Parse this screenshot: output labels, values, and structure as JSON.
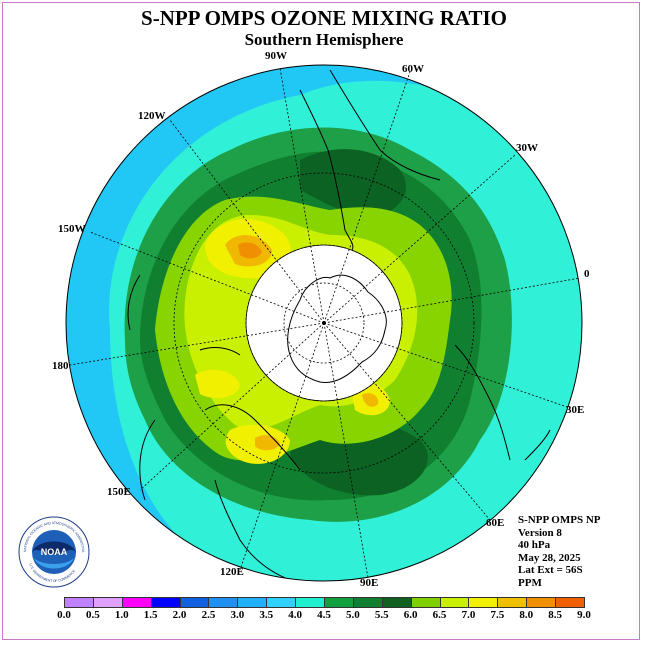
{
  "header": {
    "title": "S-NPP OMPS OZONE MIXING RATIO",
    "subtitle": "Southern Hemisphere"
  },
  "longitude_labels": {
    "w90": "90W",
    "w60": "60W",
    "w120": "120W",
    "w30": "30W",
    "w150": "150W",
    "e0": "0",
    "e180": "180",
    "e30": "30E",
    "e150": "150E",
    "e60": "60E",
    "e120": "120E",
    "e90": "90E"
  },
  "info": {
    "instrument": "S-NPP OMPS NP",
    "version": "Version 8",
    "level": "40 hPa",
    "date": "May 28, 2025",
    "lat_ext": "Lat Ext = 56S",
    "units": "PPM"
  },
  "logo": {
    "text": "NOAA",
    "ring_text": "NATIONAL OCEANIC AND ATMOSPHERIC ADMINISTRATION",
    "ring_text_bottom": "U.S. DEPARTMENT OF COMMERCE"
  },
  "colorbar": {
    "ticks": [
      "0.0",
      "0.5",
      "1.0",
      "1.5",
      "2.0",
      "2.5",
      "3.0",
      "3.5",
      "4.0",
      "4.5",
      "5.0",
      "5.5",
      "6.0",
      "6.5",
      "7.0",
      "7.5",
      "8.0",
      "8.5",
      "9.0"
    ],
    "colors": [
      "#c080ff",
      "#e0a0ff",
      "#ff00ff",
      "#0000ff",
      "#1060e0",
      "#2090f0",
      "#20b0f8",
      "#30d0ff",
      "#20f0d0",
      "#10a040",
      "#108030",
      "#106020",
      "#80d000",
      "#c8f000",
      "#f0f000",
      "#f0c000",
      "#f09000",
      "#f06000",
      "#f00000",
      "#a06040"
    ]
  }
}
